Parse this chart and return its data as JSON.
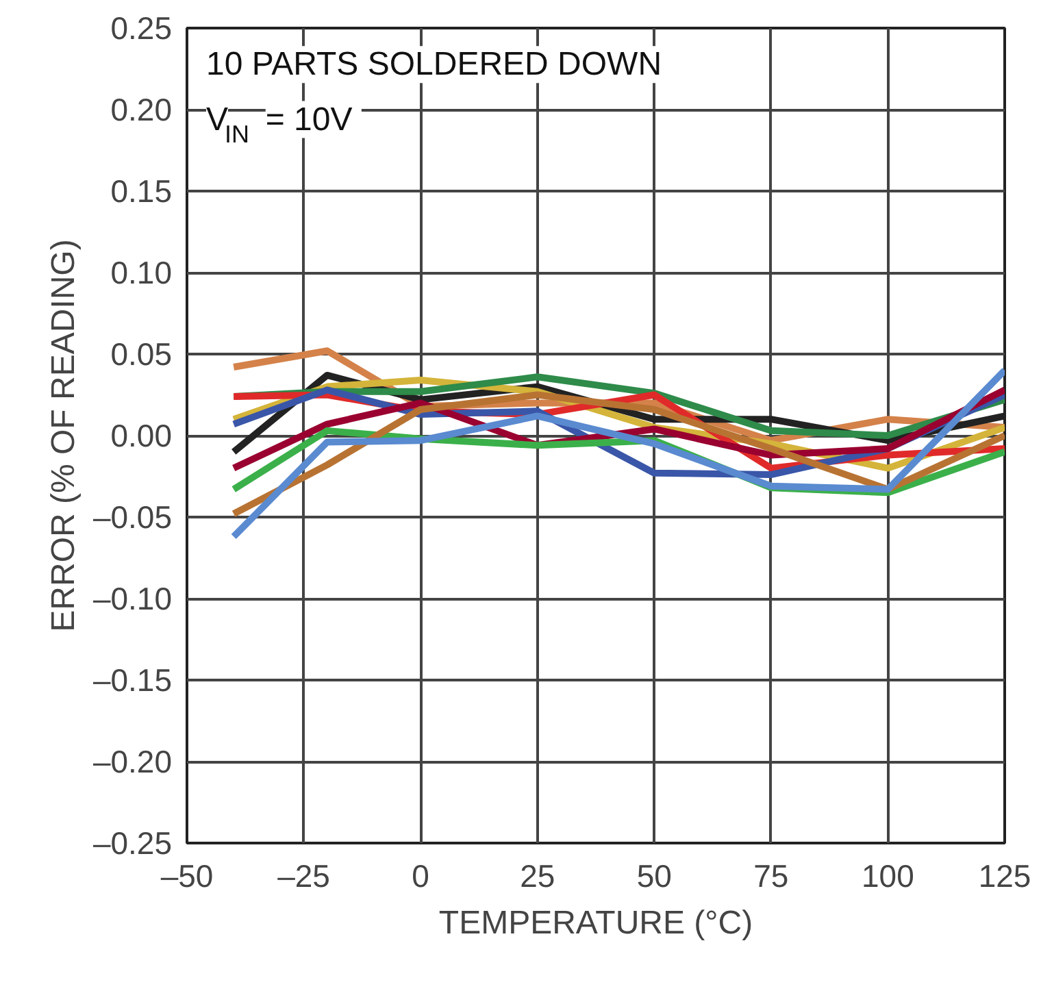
{
  "chart_data": {
    "type": "line",
    "xlabel": "TEMPERATURE (°C)",
    "ylabel": "ERROR (% OF READING)",
    "annotations": [
      "10 PARTS SOLDERED DOWN",
      "V$_{IN}$ = 10V"
    ],
    "x": [
      -40,
      -20,
      0,
      25,
      50,
      75,
      100,
      125
    ],
    "series": [
      {
        "color": "#d4824a",
        "values": [
          0.042,
          0.052,
          0.018,
          0.02,
          0.02,
          -0.003,
          0.01,
          0.005
        ]
      },
      {
        "color": "#222222",
        "values": [
          -0.01,
          0.037,
          0.022,
          0.03,
          0.01,
          0.01,
          -0.003,
          0.012
        ]
      },
      {
        "color": "#d4b43a",
        "values": [
          0.01,
          0.03,
          0.034,
          0.027,
          0.005,
          -0.005,
          -0.02,
          0.005
        ]
      },
      {
        "color": "#2e8b4a",
        "values": [
          0.024,
          0.027,
          0.027,
          0.036,
          0.026,
          0.003,
          0.0,
          0.022
        ]
      },
      {
        "color": "#e02a2a",
        "values": [
          0.024,
          0.025,
          0.015,
          0.013,
          0.025,
          -0.02,
          -0.012,
          -0.008
        ]
      },
      {
        "color": "#3a56a8",
        "values": [
          0.007,
          0.028,
          0.013,
          0.015,
          -0.023,
          -0.024,
          -0.008,
          0.025
        ]
      },
      {
        "color": "#9a0030",
        "values": [
          -0.02,
          0.007,
          0.02,
          -0.006,
          0.004,
          -0.012,
          -0.008,
          0.028
        ]
      },
      {
        "color": "#3bb04a",
        "values": [
          -0.033,
          0.003,
          -0.002,
          -0.006,
          -0.003,
          -0.032,
          -0.035,
          -0.01
        ]
      },
      {
        "color": "#b87333",
        "values": [
          -0.048,
          -0.018,
          0.016,
          0.025,
          0.016,
          -0.008,
          -0.033,
          0.0
        ]
      },
      {
        "color": "#5a8ad0",
        "values": [
          -0.062,
          -0.004,
          -0.003,
          0.012,
          -0.005,
          -0.031,
          -0.033,
          0.04
        ]
      }
    ],
    "xlim": [
      -50,
      125
    ],
    "xticks": [
      {
        "value": -50,
        "label": "–50"
      },
      {
        "value": -25,
        "label": "–25"
      },
      0,
      25,
      50,
      75,
      100,
      125
    ],
    "ylim": [
      -0.25,
      0.25
    ],
    "yticks": [
      {
        "value": -0.25,
        "label": "–0.25"
      },
      {
        "value": -0.2,
        "label": "–0.20"
      },
      {
        "value": -0.15,
        "label": "–0.15"
      },
      {
        "value": -0.1,
        "label": "–0.10"
      },
      {
        "value": -0.05,
        "label": "–0.05"
      },
      {
        "value": 0,
        "label": "0.00"
      },
      {
        "value": 0.05,
        "label": "0.05"
      },
      {
        "value": 0.1,
        "label": "0.10"
      },
      {
        "value": 0.15,
        "label": "0.15"
      },
      {
        "value": 0.2,
        "label": "0.20"
      },
      {
        "value": 0.25,
        "label": "0.25"
      }
    ],
    "grid": true,
    "marker": "none",
    "line_style": "solid"
  }
}
